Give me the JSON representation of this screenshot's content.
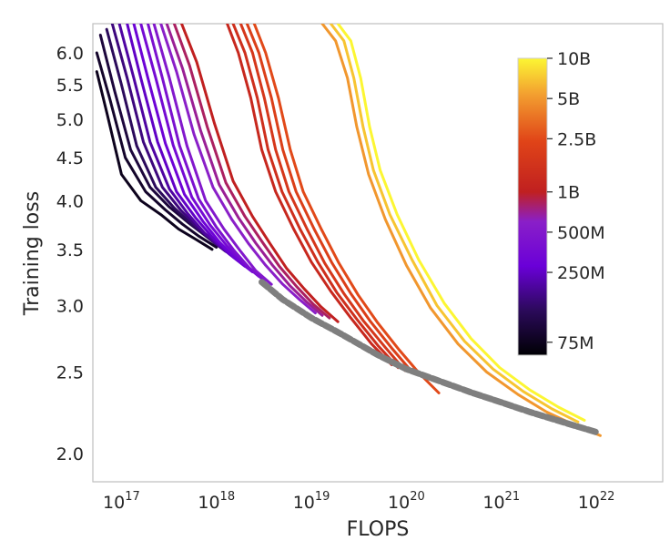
{
  "chart_data": {
    "type": "line",
    "xlabel": "FLOPS",
    "ylabel": "Training loss",
    "xscale": "log",
    "yscale": "log",
    "xlim": [
      5e+16,
      5e+22
    ],
    "ylim": [
      1.85,
      6.5
    ],
    "grid": false,
    "x_ticks": [
      {
        "value": 1e+17,
        "base": "10",
        "exp": "17"
      },
      {
        "value": 1e+18,
        "base": "10",
        "exp": "18"
      },
      {
        "value": 1e+19,
        "base": "10",
        "exp": "19"
      },
      {
        "value": 1e+20,
        "base": "10",
        "exp": "20"
      },
      {
        "value": 1e+21,
        "base": "10",
        "exp": "21"
      },
      {
        "value": 1e+22,
        "base": "10",
        "exp": "22"
      }
    ],
    "y_ticks": [
      {
        "value": 2.0,
        "label": "2.0"
      },
      {
        "value": 2.5,
        "label": "2.5"
      },
      {
        "value": 3.0,
        "label": "3.0"
      },
      {
        "value": 3.5,
        "label": "3.5"
      },
      {
        "value": 4.0,
        "label": "4.0"
      },
      {
        "value": 4.5,
        "label": "4.5"
      },
      {
        "value": 5.0,
        "label": "5.0"
      },
      {
        "value": 5.5,
        "label": "5.5"
      },
      {
        "value": 6.0,
        "label": "6.0"
      }
    ],
    "colorbar": {
      "colormap": "inferno-like",
      "min": 60000000,
      "max": 10000000000,
      "scale": "log",
      "ticks": [
        {
          "value": 75000000,
          "label": "75M"
        },
        {
          "value": 250000000,
          "label": "250M"
        },
        {
          "value": 500000000,
          "label": "500M"
        },
        {
          "value": 1000000000,
          "label": "1B"
        },
        {
          "value": 2500000000,
          "label": "2.5B"
        },
        {
          "value": 5000000000,
          "label": "5B"
        },
        {
          "value": 10000000000,
          "label": "10B"
        }
      ]
    },
    "series": [
      {
        "params": 75000000,
        "x": [
          5.5e+16,
          7e+16,
          1e+17,
          1.6e+17,
          2.6e+17,
          4e+17,
          6e+17,
          9e+17
        ],
        "y": [
          5.7,
          5.1,
          4.3,
          4.0,
          3.85,
          3.7,
          3.6,
          3.5
        ]
      },
      {
        "params": 85000000,
        "x": [
          5.5e+16,
          7.5e+16,
          1.1e+17,
          1.8e+17,
          2.9e+17,
          4.4e+17,
          6.5e+17,
          1e+18
        ],
        "y": [
          6.0,
          5.3,
          4.5,
          4.1,
          3.9,
          3.75,
          3.63,
          3.52
        ]
      },
      {
        "params": 100000000,
        "x": [
          6e+16,
          8.5e+16,
          1.25e+17,
          2e+17,
          3.2e+17,
          5e+17,
          7.5e+17,
          1.1e+18
        ],
        "y": [
          6.3,
          5.4,
          4.6,
          4.15,
          3.93,
          3.77,
          3.64,
          3.52
        ]
      },
      {
        "params": 130000000,
        "x": [
          7e+16,
          1e+17,
          1.45e+17,
          2.3e+17,
          3.6e+17,
          5.6e+17,
          8.5e+17,
          1.25e+18
        ],
        "y": [
          6.4,
          5.5,
          4.65,
          4.15,
          3.92,
          3.74,
          3.6,
          3.48
        ]
      },
      {
        "params": 160000000,
        "x": [
          8e+16,
          1.15e+17,
          1.7e+17,
          2.7e+17,
          4.2e+17,
          6.4e+17,
          9.7e+17,
          1.45e+18
        ],
        "y": [
          6.5,
          5.6,
          4.7,
          4.15,
          3.9,
          3.71,
          3.56,
          3.44
        ]
      },
      {
        "params": 200000000,
        "x": [
          9.5e+16,
          1.35e+17,
          2e+17,
          3.2e+17,
          5e+17,
          7.5e+17,
          1.15e+18,
          1.7e+18
        ],
        "y": [
          6.5,
          5.6,
          4.7,
          4.13,
          3.86,
          3.66,
          3.51,
          3.39
        ]
      },
      {
        "params": 250000000,
        "x": [
          1.15e+17,
          1.6e+17,
          2.4e+17,
          3.8e+17,
          6e+17,
          9e+17,
          1.35e+18,
          2e+18
        ],
        "y": [
          6.5,
          5.6,
          4.7,
          4.1,
          3.82,
          3.62,
          3.46,
          3.34
        ]
      },
      {
        "params": 300000000,
        "x": [
          1.35e+17,
          1.9e+17,
          2.9e+17,
          4.6e+17,
          7.2e+17,
          1.08e+18,
          1.6e+18,
          2.4e+18
        ],
        "y": [
          6.5,
          5.6,
          4.68,
          4.07,
          3.78,
          3.57,
          3.41,
          3.29
        ]
      },
      {
        "params": 360000000,
        "x": [
          1.6e+17,
          2.3e+17,
          3.5e+17,
          5.5e+17,
          8.6e+17,
          1.3e+18,
          1.9e+18,
          2.8e+18
        ],
        "y": [
          6.5,
          5.6,
          4.66,
          4.04,
          3.74,
          3.53,
          3.37,
          3.25
        ]
      },
      {
        "params": 420000000,
        "x": [
          1.9e+17,
          2.7e+17,
          4.1e+17,
          6.5e+17,
          1e+18,
          1.5e+18,
          2.2e+18,
          3.2e+18
        ],
        "y": [
          6.5,
          5.6,
          4.65,
          4.02,
          3.72,
          3.5,
          3.33,
          3.21
        ]
      },
      {
        "params": 500000000,
        "x": [
          2.2e+17,
          3.2e+17,
          4.9e+17,
          7.7e+17,
          1.2e+18,
          1.8e+18,
          2.6e+18,
          3.8e+18
        ],
        "y": [
          6.5,
          5.6,
          4.65,
          4.0,
          3.7,
          3.48,
          3.3,
          3.18
        ]
      },
      {
        "params": 600000000,
        "x": [
          2.6e+17,
          3.8e+17,
          5.8e+17,
          9.2e+17,
          1.45e+18,
          2.2e+18,
          3.3e+18,
          5e+18,
          7.5e+18,
          1.1e+19
        ],
        "y": [
          6.5,
          5.7,
          4.8,
          4.15,
          3.8,
          3.55,
          3.35,
          3.18,
          3.05,
          2.94
        ]
      },
      {
        "params": 700000000,
        "x": [
          3e+17,
          4.4e+17,
          6.8e+17,
          1.07e+18,
          1.7e+18,
          2.6e+18,
          3.9e+18,
          5.9e+18,
          8.9e+18,
          1.3e+19
        ],
        "y": [
          6.5,
          5.75,
          4.85,
          4.18,
          3.82,
          3.56,
          3.35,
          3.17,
          3.03,
          2.92
        ]
      },
      {
        "params": 820000000,
        "x": [
          3.6e+17,
          5.2e+17,
          8e+17,
          1.26e+18,
          2e+18,
          3.1e+18,
          4.6e+18,
          7e+18,
          1.05e+19,
          1.55e+19
        ],
        "y": [
          6.5,
          5.8,
          4.9,
          4.2,
          3.83,
          3.56,
          3.34,
          3.16,
          3.01,
          2.9
        ]
      },
      {
        "params": 1000000000,
        "x": [
          4.3e+17,
          6.2e+17,
          9.5e+17,
          1.5e+18,
          2.4e+18,
          3.7e+18,
          5.5e+18,
          8.4e+18,
          1.26e+19,
          1.9e+19
        ],
        "y": [
          6.5,
          5.85,
          4.95,
          4.22,
          3.83,
          3.55,
          3.32,
          3.14,
          2.99,
          2.87
        ]
      },
      {
        "params": 1200000000,
        "x": [
          1.3e+18,
          1.7e+18,
          2.3e+18,
          3e+18,
          4.2e+18,
          6.5e+18,
          1e+19,
          1.6e+19,
          2.6e+19,
          4.3e+19,
          7e+19
        ],
        "y": [
          6.5,
          6.0,
          5.3,
          4.6,
          4.1,
          3.7,
          3.38,
          3.12,
          2.9,
          2.7,
          2.55
        ]
      },
      {
        "params": 1450000000,
        "x": [
          1.5e+18,
          2e+18,
          2.7e+18,
          3.5e+18,
          4.9e+18,
          7.6e+18,
          1.17e+19,
          1.85e+19,
          3e+19,
          5e+19,
          8.2e+19
        ],
        "y": [
          6.5,
          6.0,
          5.3,
          4.6,
          4.1,
          3.7,
          3.38,
          3.11,
          2.89,
          2.69,
          2.53
        ]
      },
      {
        "params": 1750000000,
        "x": [
          1.8e+18,
          2.4e+18,
          3.2e+18,
          4.2e+18,
          5.8e+18,
          9e+18,
          1.38e+19,
          2.2e+19,
          3.5e+19,
          5.9e+19,
          9.7e+19
        ],
        "y": [
          6.5,
          6.0,
          5.3,
          4.6,
          4.1,
          3.7,
          3.37,
          3.1,
          2.88,
          2.68,
          2.51
        ]
      },
      {
        "params": 2100000000,
        "x": [
          2.1e+18,
          2.8e+18,
          3.8e+18,
          5e+18,
          6.9e+18,
          1.07e+19,
          1.65e+19,
          2.6e+19,
          4.2e+19,
          7e+19,
          1.15e+20
        ],
        "y": [
          6.5,
          6.0,
          5.3,
          4.6,
          4.1,
          3.7,
          3.37,
          3.1,
          2.87,
          2.67,
          2.5
        ]
      },
      {
        "params": 2500000000,
        "x": [
          2.5e+18,
          3.3e+18,
          4.5e+18,
          6e+18,
          8.2e+18,
          1.27e+19,
          1.95e+19,
          3.1e+19,
          5e+19,
          8.3e+19,
          1.37e+20,
          2.2e+20
        ],
        "y": [
          6.5,
          6.0,
          5.3,
          4.6,
          4.1,
          3.7,
          3.37,
          3.09,
          2.86,
          2.66,
          2.49,
          2.36
        ]
      },
      {
        "params": 5000000000,
        "x": [
          1.3e+19,
          1.8e+19,
          2.4e+19,
          3e+19,
          4e+19,
          6e+19,
          1e+20,
          1.8e+20,
          3.5e+20,
          7e+20,
          1.5e+21,
          3e+21,
          6e+21,
          1.1e+22
        ],
        "y": [
          6.5,
          6.2,
          5.6,
          4.9,
          4.3,
          3.8,
          3.35,
          2.98,
          2.7,
          2.5,
          2.35,
          2.24,
          2.16,
          2.1
        ]
      },
      {
        "params": 7000000000,
        "x": [
          1.6e+19,
          2.2e+19,
          2.8e+19,
          3.5e+19,
          4.5e+19,
          6.7e+19,
          1.15e+20,
          2.1e+20,
          4.1e+20,
          8.2e+20,
          1.7e+21,
          3.4e+21,
          6.4e+21
        ],
        "y": [
          6.5,
          6.2,
          5.6,
          4.9,
          4.35,
          3.85,
          3.4,
          3.0,
          2.72,
          2.52,
          2.37,
          2.26,
          2.18
        ]
      },
      {
        "params": 10000000000,
        "x": [
          1.9e+19,
          2.6e+19,
          3.3e+19,
          4.1e+19,
          5.3e+19,
          8e+19,
          1.35e+20,
          2.5e+20,
          4.8e+20,
          9.6e+20,
          2e+21,
          4e+21,
          7.5e+21
        ],
        "y": [
          6.5,
          6.2,
          5.6,
          4.9,
          4.35,
          3.85,
          3.4,
          3.02,
          2.74,
          2.53,
          2.38,
          2.27,
          2.19
        ]
      }
    ],
    "envelope": {
      "color": "#7f7f7f",
      "x": [
        3e+18,
        5e+18,
        1e+19,
        2e+19,
        5e+19,
        1e+20,
        2e+20,
        5e+20,
        1e+21,
        2e+21,
        5e+21,
        1e+22
      ],
      "y": [
        3.2,
        3.05,
        2.9,
        2.78,
        2.62,
        2.52,
        2.45,
        2.36,
        2.3,
        2.24,
        2.17,
        2.12
      ]
    }
  }
}
